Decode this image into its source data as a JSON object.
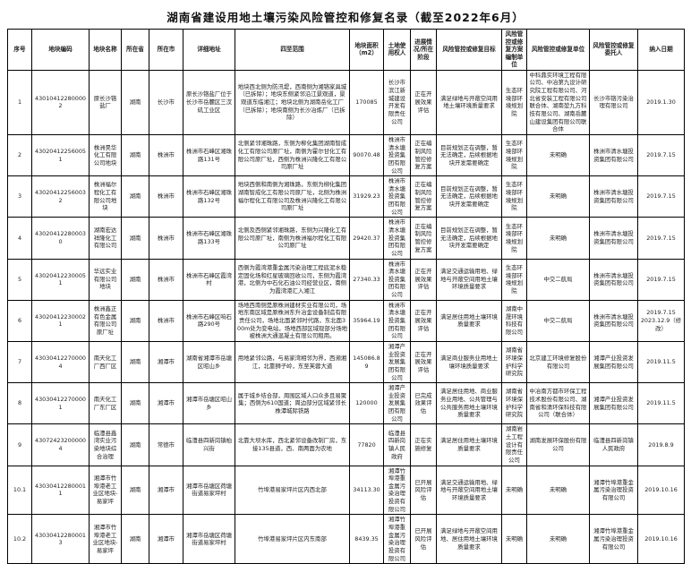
{
  "title": "湖南省建设用地土壤污染风险管控和修复名录（截至2022年6月）",
  "table": {
    "headers": [
      "序号",
      "地块编码",
      "地块名称",
      "所在省",
      "所在市",
      "详细地址",
      "四至范围",
      "地块面积（m2）",
      "土地使用权人",
      "进展情况/所在阶段",
      "风险管控或修复目标",
      "风险管控或修复方案编制单位",
      "风险管控或修复单位",
      "风险管控或修复委托人",
      "纳入日期"
    ],
    "rows": [
      [
        "1",
        "430104122800002",
        "原长沙铬盐厂",
        "湖南",
        "长沙市",
        "原长沙铬盐厂位于长沙市岳麓区三汊矶工业区",
        "地块西北侧为防汛堤，西南侧为湘铬家具城（已拆除）；地块东侧紧邻沿江景观道，景观道东临湘江；地块北侧为湖南岳化工厂（已拆除）；地块南侧为长沙冶炼厂（已拆除）",
        "170085",
        "长沙市滨江新城建设开发有限责任公司",
        "正在开展效果评估",
        "满足绿地与开敞空间用地土壤环境质量要求",
        "生态环境部环境规划院",
        "中科鼎实环境工程有限公司、中冶第九设计研究院工程有限公司、河北省安装工程有限公司联合体、湖南堃九方科技有限公司、湖南岳麓山建设集团有限公司联合体",
        "长沙市铬污染治理有限公司",
        "2019.1.30"
      ],
      [
        "2",
        "430204122560051",
        "株洲昊华化工有限公司地块",
        "湖南",
        "株洲市",
        "株洲市石峰区湘珠路131号",
        "北侧紧邻湘珠路，东侧为柳化集团湖南智成化工有限公司原厂址，南侧为霍尔甘化工有限公司原厂址，西侧为株洲兴隆化工有限公司原厂址",
        "90070.48",
        "株洲市清水塘投资集团有限公司",
        "正在编制风险管控修复方案",
        "目前规划正在调整，暂无法确定，后续根据地块开发需要确定",
        "生态环境部环境规划院",
        "未明确",
        "株洲市清水塘投资集团有限公司",
        "2019.7.15"
      ],
      [
        "3",
        "430204122560032",
        "株洲福尔程化工有限公司地块",
        "湖南",
        "株洲市",
        "株洲市石峰区湘珠路132号",
        "地块西侧和南侧为湘珠路，东侧为柳化集团湖南智成化工有限公司原厂址，北侧为株洲福尔程化工有限公司及株洲兴隆化工有限公司原厂址",
        "31929.23",
        "株洲市清水塘投资集团有限公司",
        "正在编制风险管控修复方案",
        "目前规划正在调整，暂无法确定，后续根据地块开发需要确定",
        "生态环境部环境规划院",
        "未明确",
        "株洲市清水塘投资集团有限公司",
        "2019.7.15"
      ],
      [
        "4",
        "430204122800030",
        "湖南宏达祥隆化工有限公司",
        "湖南",
        "株洲市",
        "株洲市石峰区湘珠路133号",
        "北侧及西侧紧邻湘珠路，东侧为兴隆化工有限公司原厂址，南侧为株洲福尔程化工有限公司原厂址",
        "29420.37",
        "株洲市清水塘投资集团有限公司",
        "正在编制风险管控修复方案",
        "目前规划正在调整，暂无法确定，后续根据地块开发需要确定",
        "生态环境部环境规划院",
        "未明确",
        "株洲市清水塘投资集团有限公司",
        "2019.7.15"
      ],
      [
        "5",
        "430204122300051",
        "华远实业有限公司地块",
        "湖南",
        "株洲市",
        "株洲市石峰区霞湾村",
        "西侧为霞湾港重金属污染治理工程底泥水稳定固化场和红星玻璃回收公司，东侧为霞湾港，北侧为中石化石油公司经营业区，南侧为霞湾港汇入湘江",
        "27340.33",
        "株洲市清水塘投资集团有限公司",
        "正在开展效果评估",
        "满足交通运输用地、绿地与开敞空间用地土壤环境质量要求",
        "生态环境部环境规划院",
        "中交二航局",
        "株洲市清水塘投资集团有限公司",
        "2019.7.15"
      ],
      [
        "6",
        "430204122300021",
        "株洲鑫正有色金属有限公司原厂址",
        "湖南",
        "株洲市",
        "株洲市石峰区响石路290号",
        "场地西南侧是原株洲建材实业有限公司，场地东南区域是原株洲东升冶金设备制造有限责任公司，场地北面紧邻时代路，东北面300m处为变电站，场地西部区域现部分场地被株洲大通混凝土有限公司租用。",
        "35964.19",
        "株洲市清水塘投资集团有限公司",
        "正在开展效果评估",
        "满足居住用地土壤环境质量要求",
        "湖南中晟环境科技有限公司",
        "中交二航局",
        "株洲市清水塘投资集团有限公司",
        "2019.7.15\n2023.12.9（修改）"
      ],
      [
        "7",
        "430304122700004",
        "南天化工厂西厂区",
        "湖南",
        "湘潭市",
        "湖南省湘潭市岳塘区昭山乡",
        "用地紧邻公路，与易家湾相邻为界，西濒湘江，北靠狮子岭，东至芙蓉大道",
        "145086.89",
        "湘潭产业投资发展集团有限公司",
        "正在开展效果评估",
        "满足商业服务业用地土壤环境质量要求",
        "湖南省环境保护科学研究院",
        "北京建工环境修复股份有限公司",
        "湘潭产业投资发展集团有限公司",
        "2019.11.5"
      ],
      [
        "8",
        "430304122700001",
        "南天化工厂东厂区",
        "湖南",
        "湘潭市",
        "湘潭市岳塘区昭山乡",
        "属于城乡结合部，周围区域人口众多且易聚集；西侧为610国道；周边部分区域紧邻长株潭城际铁路",
        "120000",
        "湘潭产业投资发展集团有限公司",
        "已完成效果评估",
        "满足居住用地、商业服务业用地、公共管理与公共服务用地土壤环境质量要求",
        "湖南省环境保护科学研究院",
        "中冶南方都市环保工程技术股份有限公司、湖南省和清环保科技有限公司（联合体）",
        "湘潭产业投资发展集团有限公司",
        "2019.11.5"
      ],
      [
        "9",
        "430724232000004",
        "临澧县鑫湾实业污染地块综合治理",
        "湖南",
        "常德市",
        "临澧县四新岗镇柏兴街",
        "北靠大坝水库，西北紧邻设备改制厂房，东接135县道，西、南两面为农地",
        "77820",
        "临澧县四新岗镇人民政府",
        "正在实施修复",
        "满足居住用地土壤环境质量要求",
        "湖南岩土工程设计有限责任公司",
        "湖南发展环保股份有限公司",
        "临澧县四新岗镇人民政府",
        "2019.8.9"
      ],
      [
        "10.1",
        "430304122800011",
        "湘潭市竹埠港老工业区地块-易家坪",
        "湖南",
        "湘潭市",
        "湘潭市岳塘区荷塘街道易家坪村",
        "竹埠港易家坪片区内西北部",
        "34113.30",
        "湘潭竹埠港重金属污染治理投资有限公司",
        "已开展风险评估",
        "满足交通运输用地、绿地与开敞空间用地土壤环境质量要求",
        "未明确",
        "未明确",
        "湘潭竹埠港重金属污染治理投资有限公司",
        "2019.10.16"
      ],
      [
        "10.2",
        "430304122800013",
        "湘潭市竹埠港老工业区地块-易家坪",
        "湖南",
        "湘潭市",
        "湘潭市岳塘区荷塘街道易家坪村",
        "竹埠港易家坪片区内东南部",
        "8439.35",
        "湘潭竹埠港重金属污染治理投资有限公司",
        "已开展风险评估",
        "满足绿地与开敞空间用地、居住用地土壤环境质量要求",
        "未明确",
        "未明确",
        "湘潭竹埠港重金属污染治理投资有限公司",
        "2019.10.16"
      ]
    ]
  }
}
